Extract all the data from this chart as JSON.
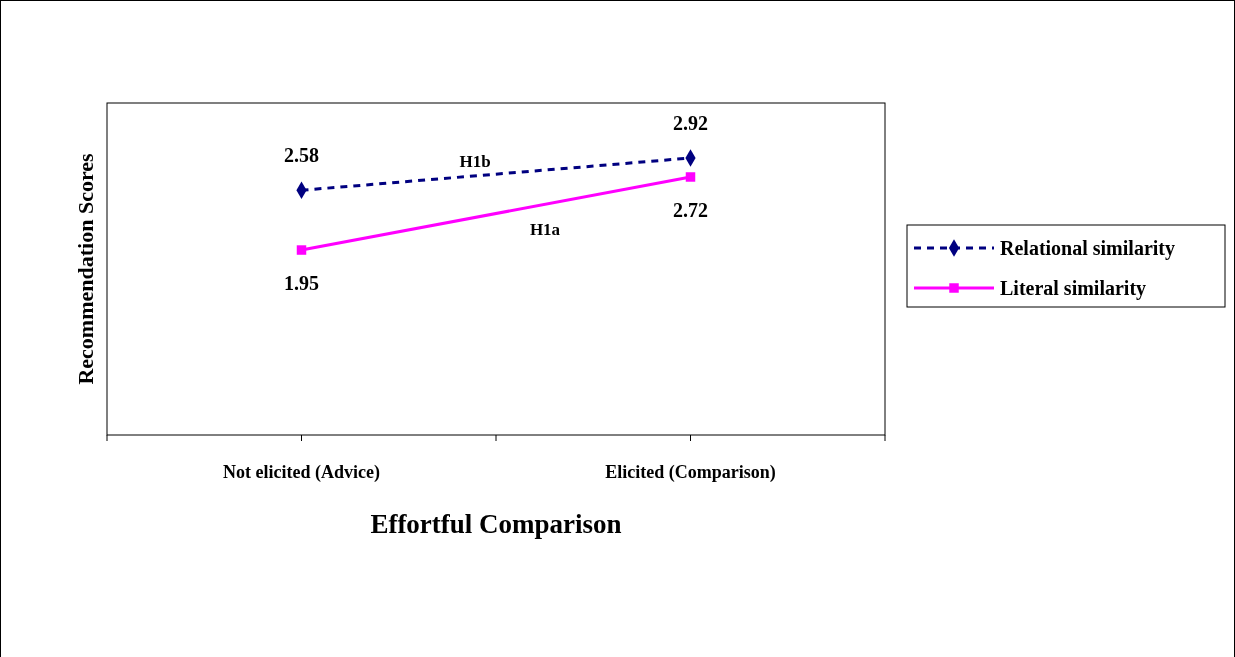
{
  "chart_data": {
    "type": "line",
    "xlabel": "Effortful Comparison",
    "ylabel": "Recommendation Scores",
    "categories": [
      "Not elicited (Advice)",
      "Elicited (Comparison)"
    ],
    "ylim": [
      0,
      3.5
    ],
    "tick_labels": "x",
    "data_labels": true,
    "legend": "right",
    "series": [
      {
        "name": "Relational similarity",
        "color": "#000080",
        "values": [
          2.58,
          2.92
        ],
        "marker": "diamond",
        "line_style": "dashed"
      },
      {
        "name": "Literal similarity",
        "color": "#ff00ff",
        "values": [
          1.95,
          2.72
        ],
        "marker": "square",
        "line_style": "solid"
      }
    ],
    "annotations": [
      "H1b",
      "H1a"
    ]
  }
}
